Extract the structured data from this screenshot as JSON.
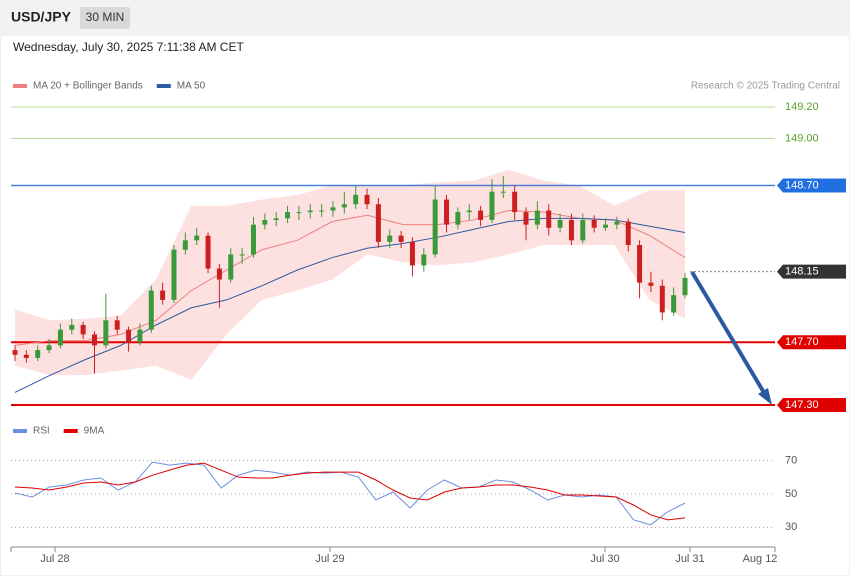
{
  "header": {
    "symbol": "USD/JPY",
    "interval": "30 MIN",
    "timestamp": "Wednesday, July 30, 2025 7:11:38 AM CET",
    "credit": "Research © 2025 Trading Central"
  },
  "x_axis": {
    "labels": [
      "Jul 28",
      "Jul 29",
      "Jul 30",
      "Jul 31",
      "Aug 12"
    ]
  },
  "chart_data": [
    {
      "type": "candlestick",
      "ylim": [
        147.25,
        149.28
      ],
      "up_color": "#3a9a3a",
      "down_color": "#cc2020",
      "band_color": "#fde0e0",
      "series": [
        {
          "name": "MA 20 + Bollinger Bands",
          "color": "#f08080",
          "values": [
            147.68,
            147.71,
            147.71,
            147.75,
            147.84,
            148.03,
            148.16,
            148.29,
            148.35,
            148.47,
            148.51,
            148.45,
            148.45,
            148.48,
            148.54,
            148.53,
            148.49,
            148.48,
            148.38,
            148.24
          ],
          "upper": [
            147.91,
            147.84,
            147.85,
            147.87,
            148.1,
            148.57,
            148.57,
            148.61,
            148.64,
            148.7,
            148.7,
            148.7,
            148.72,
            148.73,
            148.8,
            148.73,
            148.7,
            148.57,
            148.67,
            148.67
          ],
          "lower": [
            147.55,
            147.49,
            147.49,
            147.52,
            147.55,
            147.46,
            147.75,
            147.97,
            148.03,
            148.1,
            148.26,
            148.21,
            148.19,
            148.21,
            148.26,
            148.32,
            148.32,
            148.32,
            147.97,
            147.85
          ]
        },
        {
          "name": "MA 50",
          "color": "#2c5aa0",
          "values": [
            147.38,
            147.49,
            147.59,
            147.68,
            147.81,
            147.92,
            147.97,
            148.06,
            148.16,
            148.24,
            148.3,
            148.33,
            148.37,
            148.42,
            148.47,
            148.49,
            148.49,
            148.48,
            148.44,
            148.4
          ]
        }
      ],
      "candles": [
        [
          147.65,
          147.68,
          147.58,
          147.62
        ],
        [
          147.62,
          147.65,
          147.57,
          147.6
        ],
        [
          147.6,
          147.68,
          147.58,
          147.65
        ],
        [
          147.65,
          147.72,
          147.63,
          147.68
        ],
        [
          147.68,
          147.82,
          147.66,
          147.78
        ],
        [
          147.78,
          147.85,
          147.75,
          147.81
        ],
        [
          147.81,
          147.83,
          147.72,
          147.75
        ],
        [
          147.75,
          147.77,
          147.5,
          147.68
        ],
        [
          147.68,
          148.01,
          147.66,
          147.84
        ],
        [
          147.84,
          147.87,
          147.75,
          147.78
        ],
        [
          147.78,
          147.8,
          147.64,
          147.7
        ],
        [
          147.7,
          147.82,
          147.68,
          147.78
        ],
        [
          147.78,
          148.06,
          147.76,
          148.03
        ],
        [
          148.03,
          148.08,
          147.94,
          147.97
        ],
        [
          147.97,
          148.32,
          147.95,
          148.29
        ],
        [
          148.29,
          148.4,
          148.26,
          148.35
        ],
        [
          148.35,
          148.43,
          148.32,
          148.38
        ],
        [
          148.38,
          148.4,
          148.14,
          148.17
        ],
        [
          148.17,
          148.2,
          147.92,
          148.1
        ],
        [
          148.1,
          148.3,
          148.08,
          148.26
        ],
        [
          148.26,
          148.3,
          148.2,
          148.26
        ],
        [
          148.26,
          148.5,
          148.24,
          148.45
        ],
        [
          148.45,
          148.52,
          148.42,
          148.48
        ],
        [
          148.48,
          148.53,
          148.44,
          148.49
        ],
        [
          148.49,
          148.57,
          148.46,
          148.53
        ],
        [
          148.53,
          148.57,
          148.48,
          148.53
        ],
        [
          148.53,
          148.58,
          148.49,
          148.54
        ],
        [
          148.54,
          148.58,
          148.5,
          148.54
        ],
        [
          148.54,
          148.6,
          148.5,
          148.56
        ],
        [
          148.56,
          148.66,
          148.52,
          148.58
        ],
        [
          148.58,
          148.7,
          148.55,
          148.64
        ],
        [
          148.64,
          148.68,
          148.55,
          148.58
        ],
        [
          148.58,
          148.62,
          148.3,
          148.34
        ],
        [
          148.34,
          148.42,
          148.3,
          148.38
        ],
        [
          148.38,
          148.41,
          148.3,
          148.34
        ],
        [
          148.34,
          148.37,
          148.12,
          148.19
        ],
        [
          148.19,
          148.3,
          148.15,
          148.26
        ],
        [
          148.26,
          148.7,
          148.24,
          148.61
        ],
        [
          148.61,
          148.64,
          148.4,
          148.45
        ],
        [
          148.45,
          148.56,
          148.42,
          148.53
        ],
        [
          148.53,
          148.58,
          148.48,
          148.54
        ],
        [
          148.54,
          148.57,
          148.44,
          148.48
        ],
        [
          148.48,
          148.74,
          148.46,
          148.66
        ],
        [
          148.66,
          148.76,
          148.62,
          148.66
        ],
        [
          148.66,
          148.7,
          148.48,
          148.53
        ],
        [
          148.53,
          148.56,
          148.35,
          148.45
        ],
        [
          148.45,
          148.6,
          148.42,
          148.54
        ],
        [
          148.54,
          148.58,
          148.38,
          148.43
        ],
        [
          148.43,
          148.52,
          148.4,
          148.48
        ],
        [
          148.48,
          148.52,
          148.32,
          148.35
        ],
        [
          148.35,
          148.52,
          148.33,
          148.48
        ],
        [
          148.48,
          148.51,
          148.4,
          148.43
        ],
        [
          148.43,
          148.49,
          148.41,
          148.45
        ],
        [
          148.45,
          148.5,
          148.42,
          148.47
        ],
        [
          148.47,
          148.49,
          148.28,
          148.32
        ],
        [
          148.32,
          148.35,
          147.98,
          148.08
        ],
        [
          148.08,
          148.15,
          148.02,
          148.06
        ],
        [
          148.06,
          148.1,
          147.84,
          147.89
        ],
        [
          147.89,
          148.05,
          147.87,
          148.0
        ],
        [
          148.0,
          148.14,
          147.98,
          148.11
        ]
      ],
      "levels": [
        {
          "value": 149.2,
          "label": "149.20",
          "color": "#5aa02c",
          "line_color": "#b5dc9a",
          "tag": false,
          "line_width": 1,
          "dotted": false
        },
        {
          "value": 149.0,
          "label": "149.00",
          "color": "#5aa02c",
          "line_color": "#b5dc9a",
          "tag": false,
          "line_width": 1,
          "dotted": false
        },
        {
          "value": 148.7,
          "label": "148.70",
          "color": "#1f6fe0",
          "line_color": "#4a80dc",
          "tag": true,
          "line_width": 1.5,
          "dotted": false
        },
        {
          "value": 148.15,
          "label": "148.15",
          "color": "#333333",
          "line_color": "#888888",
          "tag": true,
          "line_width": 1,
          "dotted": true
        },
        {
          "value": 147.7,
          "label": "147.70",
          "color": "#e00000",
          "line_color": "#e00000",
          "tag": true,
          "line_width": 2,
          "dotted": false
        },
        {
          "value": 147.3,
          "label": "147.30",
          "color": "#e00000",
          "line_color": "#e00000",
          "tag": true,
          "line_width": 2,
          "dotted": false
        }
      ]
    },
    {
      "type": "line",
      "ylim": [
        20,
        80
      ],
      "yticks": [
        30,
        50,
        70
      ],
      "series": [
        {
          "name": "RSI",
          "color": "#6b8fe0",
          "values": [
            50.6,
            48.2,
            54.2,
            55.4,
            58.4,
            59.6,
            52.4,
            57.2,
            69.1,
            67.3,
            68.5,
            67.3,
            53.6,
            61.3,
            64.3,
            63.1,
            61.3,
            63.1,
            62.5,
            63.1,
            60.1,
            46.4,
            51.2,
            41.6,
            52.4,
            58.4,
            53.6,
            54.2,
            58.4,
            57.2,
            52.4,
            46.4,
            49.4,
            48.2,
            49.4,
            48.2,
            34.5,
            31.5,
            39.3,
            44.6
          ]
        },
        {
          "name": "9MA",
          "color": "#e00000",
          "values": [
            54.2,
            53.6,
            52.4,
            54.2,
            56.6,
            57.2,
            55.4,
            57.2,
            61.3,
            64.3,
            67.3,
            68.5,
            64.3,
            60.1,
            59.6,
            59.6,
            61.3,
            62.5,
            63.1,
            63.1,
            63.1,
            58.4,
            52.4,
            47.6,
            46.4,
            51.2,
            53.6,
            54.2,
            55.4,
            55.4,
            54.2,
            52.4,
            49.4,
            49.4,
            48.8,
            48.2,
            43.4,
            37.5,
            34.5,
            35.7
          ]
        }
      ]
    }
  ]
}
